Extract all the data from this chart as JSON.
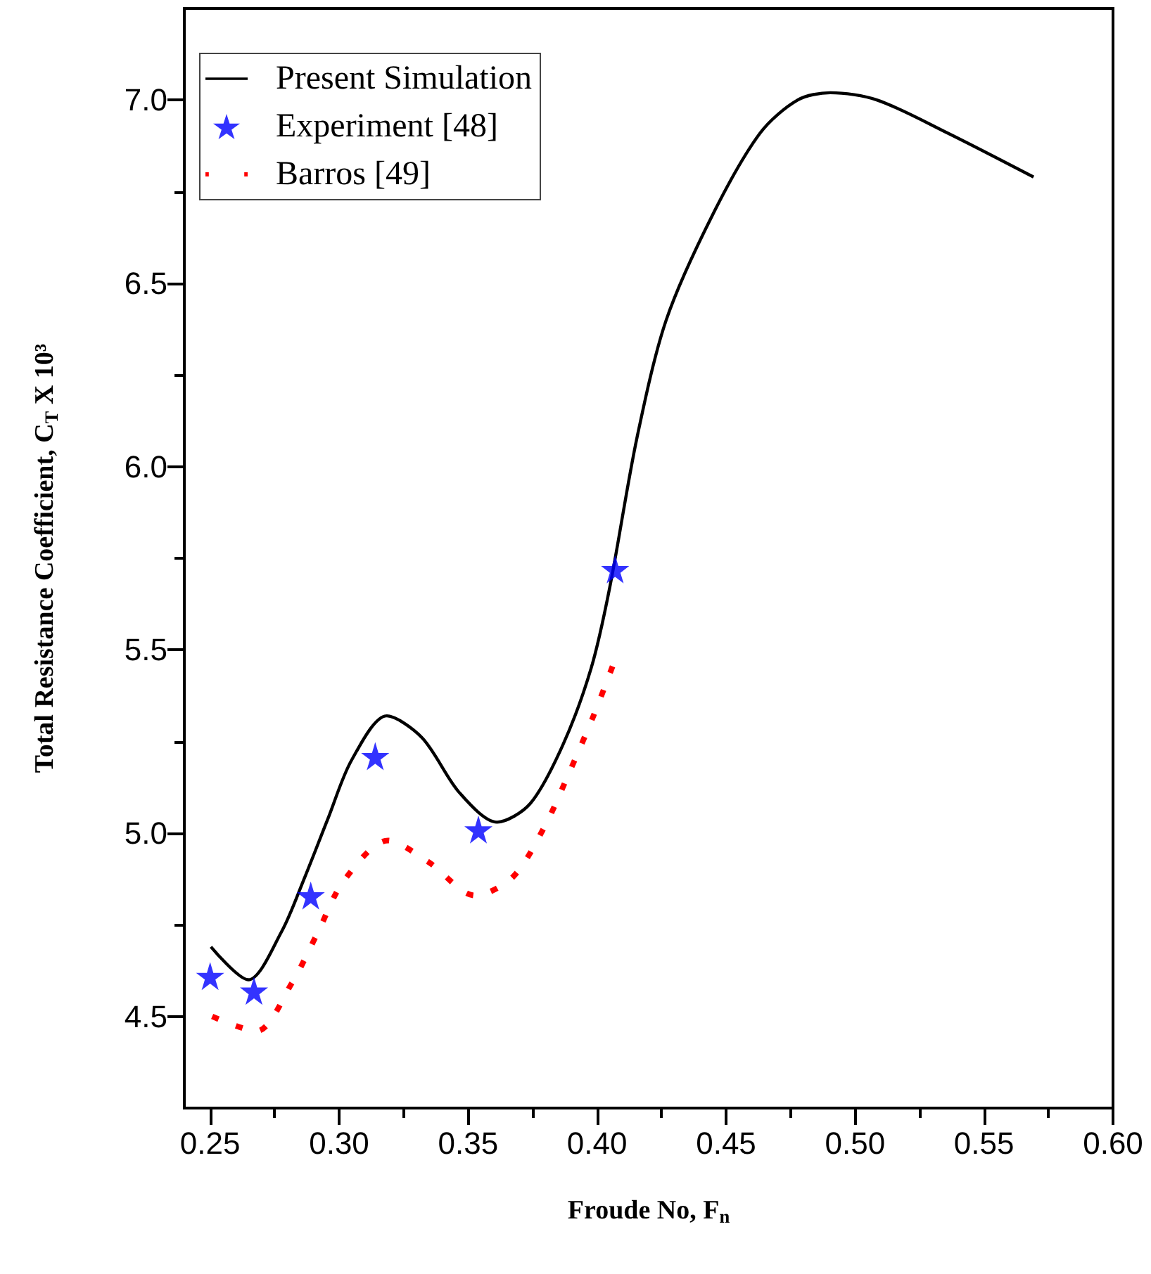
{
  "chart_data": {
    "type": "line",
    "xlabel": "Froude No, F$_{n}$",
    "ylabel": "Total Resistance Coefficient, C$_{T}$ X 10³",
    "xlim": [
      0.24,
      0.6
    ],
    "xticks": [
      0.25,
      {
        "value": 0.275,
        "label": null
      },
      {
        "value": 0.3,
        "label": "0.30"
      },
      {
        "value": 0.325,
        "label": null
      },
      0.35,
      {
        "value": 0.375,
        "label": null
      },
      {
        "value": 0.4,
        "label": "0.40"
      },
      {
        "value": 0.425,
        "label": null
      },
      0.45,
      {
        "value": 0.475,
        "label": null
      },
      {
        "value": 0.5,
        "label": "0.50"
      },
      {
        "value": 0.525,
        "label": null
      },
      0.55,
      {
        "value": 0.575,
        "label": null
      },
      {
        "value": 0.6,
        "label": "0.60"
      }
    ],
    "ylim": [
      4.25,
      7.25
    ],
    "yticks": [
      4.5,
      {
        "value": 4.75,
        "label": null
      },
      {
        "value": 5,
        "label": "5.0"
      },
      {
        "value": 5.25,
        "label": null
      },
      5.5,
      {
        "value": 5.75,
        "label": null
      },
      {
        "value": 6,
        "label": "6.0"
      },
      {
        "value": 6.25,
        "label": null
      },
      6.5,
      {
        "value": 6.75,
        "label": null
      },
      {
        "value": 7,
        "label": "7.0"
      }
    ],
    "grid": false,
    "legend": "top left",
    "series": [
      {
        "name": "Present Simulation",
        "color": "#000000",
        "marker": "none",
        "line_style": "solid",
        "x": [
          0.2503,
          0.2648,
          0.2776,
          0.2867,
          0.2957,
          0.3049,
          0.3185,
          0.3322,
          0.3467,
          0.3612,
          0.374,
          0.3867,
          0.3977,
          0.4049,
          0.4155,
          0.4268,
          0.445,
          0.4632,
          0.4777,
          0.4904,
          0.5086,
          0.5359,
          0.5692
        ],
        "values": [
          4.69,
          4.6,
          4.73,
          4.88,
          5.04,
          5.2,
          5.32,
          5.26,
          5.11,
          5.03,
          5.08,
          5.24,
          5.45,
          5.67,
          6.08,
          6.4,
          6.69,
          6.91,
          7.0,
          7.02,
          7.0,
          6.91,
          6.79
        ]
      },
      {
        "name": "Experiment [48]",
        "type": "scatter",
        "color": "#0000ff",
        "marker": "star",
        "x": [
          0.25,
          0.267,
          0.289,
          0.314,
          0.354,
          0.407
        ],
        "values": [
          4.61,
          4.57,
          4.83,
          5.21,
          5.01,
          5.72
        ]
      },
      {
        "name": "Barros [49]",
        "color": "#ff0000",
        "marker": "none",
        "line_style": "dotted",
        "x": [
          0.2508,
          0.268,
          0.2816,
          0.2918,
          0.3018,
          0.3189,
          0.3349,
          0.3527,
          0.3673,
          0.3798,
          0.3895,
          0.3986,
          0.4068
        ],
        "values": [
          4.5,
          4.46,
          4.59,
          4.73,
          4.87,
          4.98,
          4.92,
          4.83,
          4.88,
          5.02,
          5.17,
          5.32,
          5.47
        ]
      }
    ]
  }
}
